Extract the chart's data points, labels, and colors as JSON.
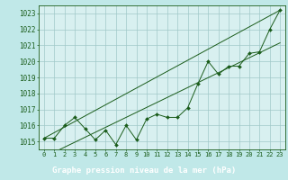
{
  "title": "Graphe pression niveau de la mer (hPa)",
  "background_color": "#c0e8e8",
  "plot_bg_color": "#d8f0f0",
  "grid_color": "#a0c8c8",
  "line_color": "#1a5c1a",
  "title_bg_color": "#1a5c1a",
  "title_text_color": "#ffffff",
  "x_labels": [
    "0",
    "1",
    "2",
    "3",
    "4",
    "5",
    "6",
    "7",
    "8",
    "9",
    "10",
    "11",
    "12",
    "13",
    "14",
    "15",
    "16",
    "17",
    "18",
    "19",
    "20",
    "21",
    "22",
    "23"
  ],
  "pressure_data": [
    1015.2,
    1015.2,
    1016.0,
    1016.5,
    1015.8,
    1015.1,
    1015.7,
    1014.8,
    1016.0,
    1015.1,
    1016.4,
    1016.7,
    1016.5,
    1016.5,
    1017.1,
    1018.6,
    1020.0,
    1019.2,
    1019.7,
    1019.7,
    1020.5,
    1020.6,
    1022.0,
    1023.2
  ],
  "ylim": [
    1014.5,
    1023.5
  ],
  "xlim": [
    -0.5,
    23.5
  ],
  "ylabel_fontsize": 5.5,
  "xlabel_fontsize": 5.0,
  "title_fontsize": 6.5,
  "marker": "D",
  "marker_size": 2.0
}
